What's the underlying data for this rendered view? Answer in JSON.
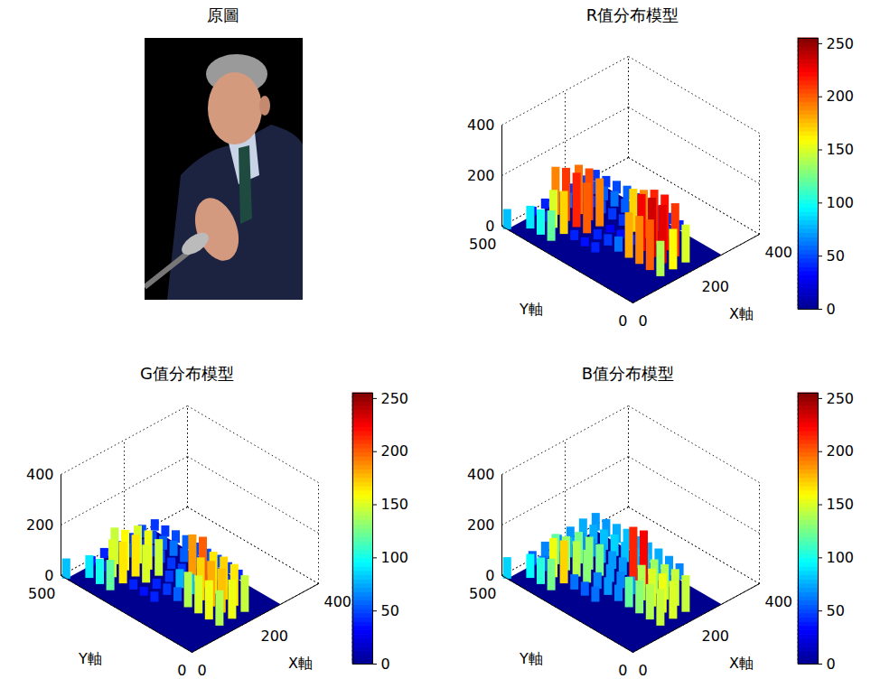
{
  "image": {
    "title": "原圖"
  },
  "chart_data": [
    {
      "type": "surface",
      "title": "R值分布模型",
      "xlabel": "X軸",
      "ylabel": "Y軸",
      "x": [
        0,
        40,
        80,
        120,
        160,
        200,
        240,
        280
      ],
      "y": [
        0,
        40,
        80,
        120,
        160,
        200,
        240,
        280,
        320,
        360,
        400,
        440,
        480
      ],
      "z": [
        [
          0,
          0,
          0,
          0,
          0,
          0,
          0,
          0
        ],
        [
          0,
          0,
          0,
          140,
          160,
          150,
          0,
          0
        ],
        [
          0,
          0,
          0,
          200,
          230,
          210,
          0,
          0
        ],
        [
          0,
          0,
          0,
          190,
          235,
          220,
          0,
          0
        ],
        [
          0,
          0,
          0,
          180,
          225,
          215,
          45,
          40
        ],
        [
          0,
          0,
          0,
          60,
          40,
          190,
          50,
          45
        ],
        [
          0,
          0,
          40,
          45,
          35,
          170,
          55,
          50
        ],
        [
          0,
          0,
          35,
          40,
          30,
          45,
          50,
          50
        ],
        [
          0,
          0,
          40,
          200,
          190,
          45,
          55,
          50
        ],
        [
          0,
          120,
          170,
          215,
          205,
          50,
          60,
          55
        ],
        [
          0,
          100,
          150,
          210,
          195,
          45,
          55,
          50
        ],
        [
          0,
          90,
          40,
          190,
          60,
          45,
          50,
          45
        ],
        [
          80,
          0,
          35,
          40,
          40,
          45,
          50,
          45
        ]
      ],
      "xlim": [
        0,
        400
      ],
      "xticks": [
        0,
        200,
        400
      ],
      "ylim": [
        0,
        500
      ],
      "yticks": [
        0,
        500
      ],
      "zlim": [
        0,
        400
      ],
      "zticks": [
        0,
        200,
        400
      ],
      "grid": true,
      "colorbar": {
        "range": [
          0,
          255
        ],
        "ticks": [
          0,
          50,
          100,
          150,
          200,
          250
        ]
      }
    },
    {
      "type": "surface",
      "title": "G值分布模型",
      "xlabel": "X軸",
      "ylabel": "Y軸",
      "x": [
        0,
        40,
        80,
        120,
        160,
        200,
        240,
        280
      ],
      "y": [
        0,
        40,
        80,
        120,
        160,
        200,
        240,
        280,
        320,
        360,
        400,
        440,
        480
      ],
      "z": [
        [
          0,
          0,
          0,
          0,
          0,
          0,
          0,
          0
        ],
        [
          0,
          0,
          0,
          140,
          155,
          145,
          0,
          0
        ],
        [
          0,
          0,
          0,
          155,
          175,
          165,
          0,
          0
        ],
        [
          0,
          0,
          0,
          150,
          180,
          170,
          0,
          0
        ],
        [
          0,
          0,
          0,
          140,
          170,
          165,
          45,
          40
        ],
        [
          0,
          0,
          0,
          55,
          80,
          200,
          50,
          45
        ],
        [
          0,
          0,
          40,
          45,
          75,
          185,
          55,
          50
        ],
        [
          0,
          0,
          35,
          40,
          45,
          45,
          50,
          50
        ],
        [
          0,
          0,
          40,
          150,
          145,
          45,
          55,
          50
        ],
        [
          0,
          120,
          165,
          165,
          155,
          50,
          60,
          55
        ],
        [
          0,
          100,
          150,
          160,
          150,
          45,
          55,
          50
        ],
        [
          0,
          90,
          40,
          145,
          55,
          45,
          50,
          45
        ],
        [
          80,
          0,
          35,
          40,
          40,
          45,
          50,
          45
        ]
      ],
      "xlim": [
        0,
        400
      ],
      "xticks": [
        0,
        200,
        400
      ],
      "ylim": [
        0,
        500
      ],
      "yticks": [
        0,
        500
      ],
      "zlim": [
        0,
        400
      ],
      "zticks": [
        0,
        200,
        400
      ],
      "grid": true,
      "colorbar": {
        "range": [
          0,
          255
        ],
        "ticks": [
          0,
          50,
          100,
          150,
          200,
          250
        ]
      }
    },
    {
      "type": "surface",
      "title": "B值分布模型",
      "xlabel": "X軸",
      "ylabel": "Y軸",
      "x": [
        0,
        40,
        80,
        120,
        160,
        200,
        240,
        280
      ],
      "y": [
        0,
        40,
        80,
        120,
        160,
        200,
        240,
        280,
        320,
        360,
        400,
        440,
        480
      ],
      "z": [
        [
          0,
          0,
          0,
          0,
          0,
          0,
          0,
          0
        ],
        [
          0,
          0,
          0,
          145,
          150,
          145,
          0,
          0
        ],
        [
          0,
          0,
          0,
          140,
          155,
          145,
          0,
          0
        ],
        [
          0,
          0,
          0,
          130,
          150,
          140,
          0,
          0
        ],
        [
          0,
          0,
          0,
          120,
          140,
          135,
          70,
          65
        ],
        [
          0,
          0,
          0,
          65,
          70,
          225,
          75,
          70
        ],
        [
          0,
          0,
          60,
          70,
          65,
          215,
          80,
          75
        ],
        [
          0,
          0,
          55,
          65,
          70,
          70,
          80,
          75
        ],
        [
          0,
          0,
          60,
          130,
          125,
          70,
          80,
          75
        ],
        [
          0,
          125,
          170,
          140,
          130,
          75,
          85,
          80
        ],
        [
          0,
          105,
          155,
          135,
          125,
          70,
          80,
          75
        ],
        [
          0,
          95,
          60,
          120,
          80,
          70,
          75,
          70
        ],
        [
          85,
          0,
          55,
          65,
          65,
          70,
          75,
          70
        ]
      ],
      "xlim": [
        0,
        400
      ],
      "xticks": [
        0,
        200,
        400
      ],
      "ylim": [
        0,
        500
      ],
      "yticks": [
        0,
        500
      ],
      "zlim": [
        0,
        400
      ],
      "zticks": [
        0,
        200,
        400
      ],
      "grid": true,
      "colorbar": {
        "range": [
          0,
          255
        ],
        "ticks": [
          0,
          50,
          100,
          150,
          200,
          250
        ]
      }
    }
  ]
}
